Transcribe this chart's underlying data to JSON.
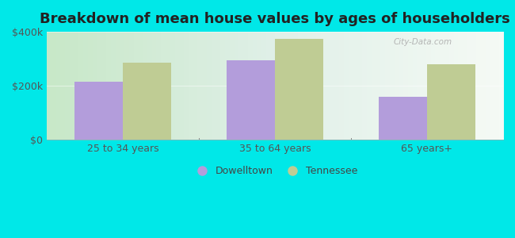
{
  "title": "Breakdown of mean house values by ages of householders",
  "categories": [
    "25 to 34 years",
    "35 to 64 years",
    "65 years+"
  ],
  "dowelltown_values": [
    215000,
    295000,
    160000
  ],
  "tennessee_values": [
    285000,
    375000,
    280000
  ],
  "dowelltown_color": "#b39ddb",
  "tennessee_color": "#bfcc94",
  "background_color": "#00e8e8",
  "ylim": [
    0,
    400000
  ],
  "yticks": [
    0,
    200000,
    400000
  ],
  "ytick_labels": [
    "$0",
    "$200k",
    "$400k"
  ],
  "legend_dowelltown": "Dowelltown",
  "legend_tennessee": "Tennessee",
  "bar_width": 0.32,
  "title_fontsize": 13,
  "tick_fontsize": 9,
  "legend_fontsize": 9,
  "watermark": "City-Data.com"
}
